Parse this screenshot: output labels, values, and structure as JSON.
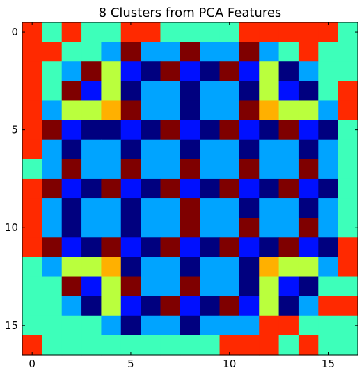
{
  "chart_data": {
    "type": "heatmap",
    "title": "8 Clusters from PCA Features",
    "xlabel": "",
    "ylabel": "",
    "x_ticks": [
      0,
      5,
      10,
      15
    ],
    "y_ticks": [
      0,
      5,
      10,
      15
    ],
    "xlim": [
      -0.5,
      16.5
    ],
    "ylim": [
      16.5,
      -0.5
    ],
    "colormap": "jet",
    "cluster_colors": {
      "0": "#00007f",
      "1": "#0010ff",
      "2": "#00a4ff",
      "3": "#3dffba",
      "4": "#baff3d",
      "5": "#ffb000",
      "6": "#ff2900",
      "7": "#7f0000"
    },
    "grid": false,
    "values": [
      [
        6,
        3,
        6,
        3,
        3,
        6,
        6,
        3,
        3,
        3,
        3,
        6,
        6,
        6,
        6,
        6,
        3
      ],
      [
        6,
        6,
        3,
        3,
        2,
        7,
        2,
        2,
        7,
        2,
        2,
        7,
        2,
        3,
        6,
        3,
        3
      ],
      [
        6,
        3,
        2,
        7,
        4,
        1,
        0,
        7,
        1,
        0,
        7,
        1,
        4,
        0,
        2,
        3,
        3
      ],
      [
        6,
        3,
        7,
        1,
        4,
        0,
        2,
        2,
        0,
        2,
        2,
        0,
        4,
        1,
        0,
        3,
        6
      ],
      [
        6,
        2,
        4,
        4,
        5,
        7,
        2,
        2,
        0,
        2,
        2,
        7,
        5,
        4,
        4,
        2,
        6
      ],
      [
        6,
        7,
        1,
        0,
        0,
        1,
        0,
        7,
        1,
        0,
        7,
        1,
        0,
        7,
        1,
        0,
        3
      ],
      [
        6,
        2,
        0,
        2,
        2,
        0,
        2,
        2,
        0,
        2,
        2,
        0,
        2,
        2,
        0,
        2,
        3
      ],
      [
        3,
        2,
        7,
        2,
        2,
        7,
        2,
        2,
        7,
        2,
        2,
        7,
        2,
        2,
        7,
        2,
        3
      ],
      [
        6,
        7,
        1,
        0,
        7,
        1,
        0,
        7,
        1,
        0,
        7,
        1,
        0,
        7,
        1,
        0,
        3
      ],
      [
        6,
        2,
        0,
        2,
        2,
        0,
        2,
        2,
        7,
        2,
        2,
        0,
        2,
        2,
        0,
        2,
        3
      ],
      [
        6,
        2,
        0,
        2,
        2,
        0,
        2,
        2,
        7,
        2,
        2,
        7,
        2,
        2,
        7,
        2,
        3
      ],
      [
        6,
        7,
        1,
        0,
        7,
        1,
        0,
        7,
        1,
        0,
        7,
        1,
        0,
        7,
        1,
        0,
        6
      ],
      [
        3,
        2,
        4,
        4,
        5,
        0,
        2,
        2,
        0,
        2,
        2,
        0,
        5,
        4,
        4,
        2,
        6
      ],
      [
        3,
        3,
        7,
        1,
        4,
        7,
        2,
        2,
        7,
        2,
        2,
        0,
        4,
        1,
        0,
        3,
        3
      ],
      [
        3,
        3,
        2,
        0,
        4,
        1,
        0,
        7,
        1,
        0,
        7,
        1,
        4,
        0,
        2,
        6,
        6
      ],
      [
        3,
        3,
        3,
        3,
        2,
        0,
        2,
        2,
        0,
        2,
        2,
        2,
        6,
        6,
        3,
        3,
        3
      ],
      [
        6,
        3,
        3,
        3,
        3,
        3,
        3,
        3,
        3,
        3,
        6,
        6,
        6,
        3,
        6,
        3,
        3
      ]
    ]
  }
}
